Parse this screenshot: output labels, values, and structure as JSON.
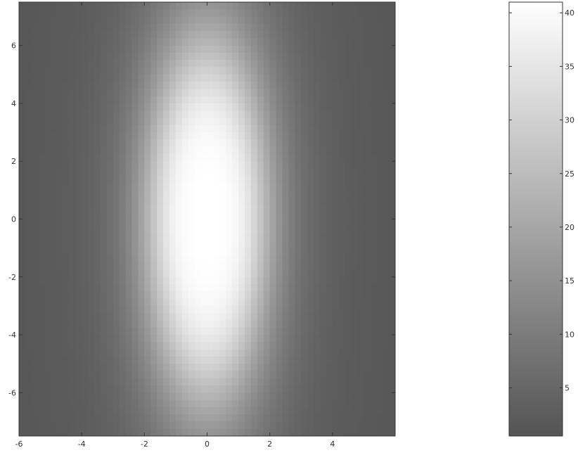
{
  "chart_data": {
    "type": "heatmap",
    "title": "",
    "xlabel": "",
    "ylabel": "",
    "xlim": [
      -6,
      6
    ],
    "ylim": [
      -7.5,
      7.5
    ],
    "x_ticks": [
      -6,
      -4,
      -2,
      0,
      2,
      4
    ],
    "y_ticks": [
      -6,
      -4,
      -2,
      0,
      2,
      4,
      6
    ],
    "x_tick_labels": [
      "-6",
      "-4",
      "-2",
      "0",
      "2",
      "4"
    ],
    "y_tick_labels": [
      "-6",
      "-4",
      "-2",
      "0",
      "2",
      "4",
      "6"
    ],
    "field": {
      "description": "Single smooth peak centred at (0, 0), brightest (~41) at the centre and falling off to ~1 towards the left and right edges; elliptical, elongated along y.",
      "peak_center": [
        0,
        0
      ],
      "peak_value": 41,
      "min_value": 1,
      "spread_x": 2.0,
      "spread_y": 6.5
    },
    "colormap": "gray",
    "colormap_range": [
      0.33,
      1.0
    ],
    "colorbar": {
      "range": [
        0.5,
        41
      ],
      "ticks": [
        5,
        10,
        15,
        20,
        25,
        30,
        35,
        40
      ],
      "tick_labels": [
        "5",
        "10",
        "15",
        "20",
        "25",
        "30",
        "35",
        "40"
      ],
      "placement": "right"
    },
    "grid": false,
    "legend": "none"
  },
  "colors": {
    "axis": "#333333",
    "background": "#ffffff"
  }
}
